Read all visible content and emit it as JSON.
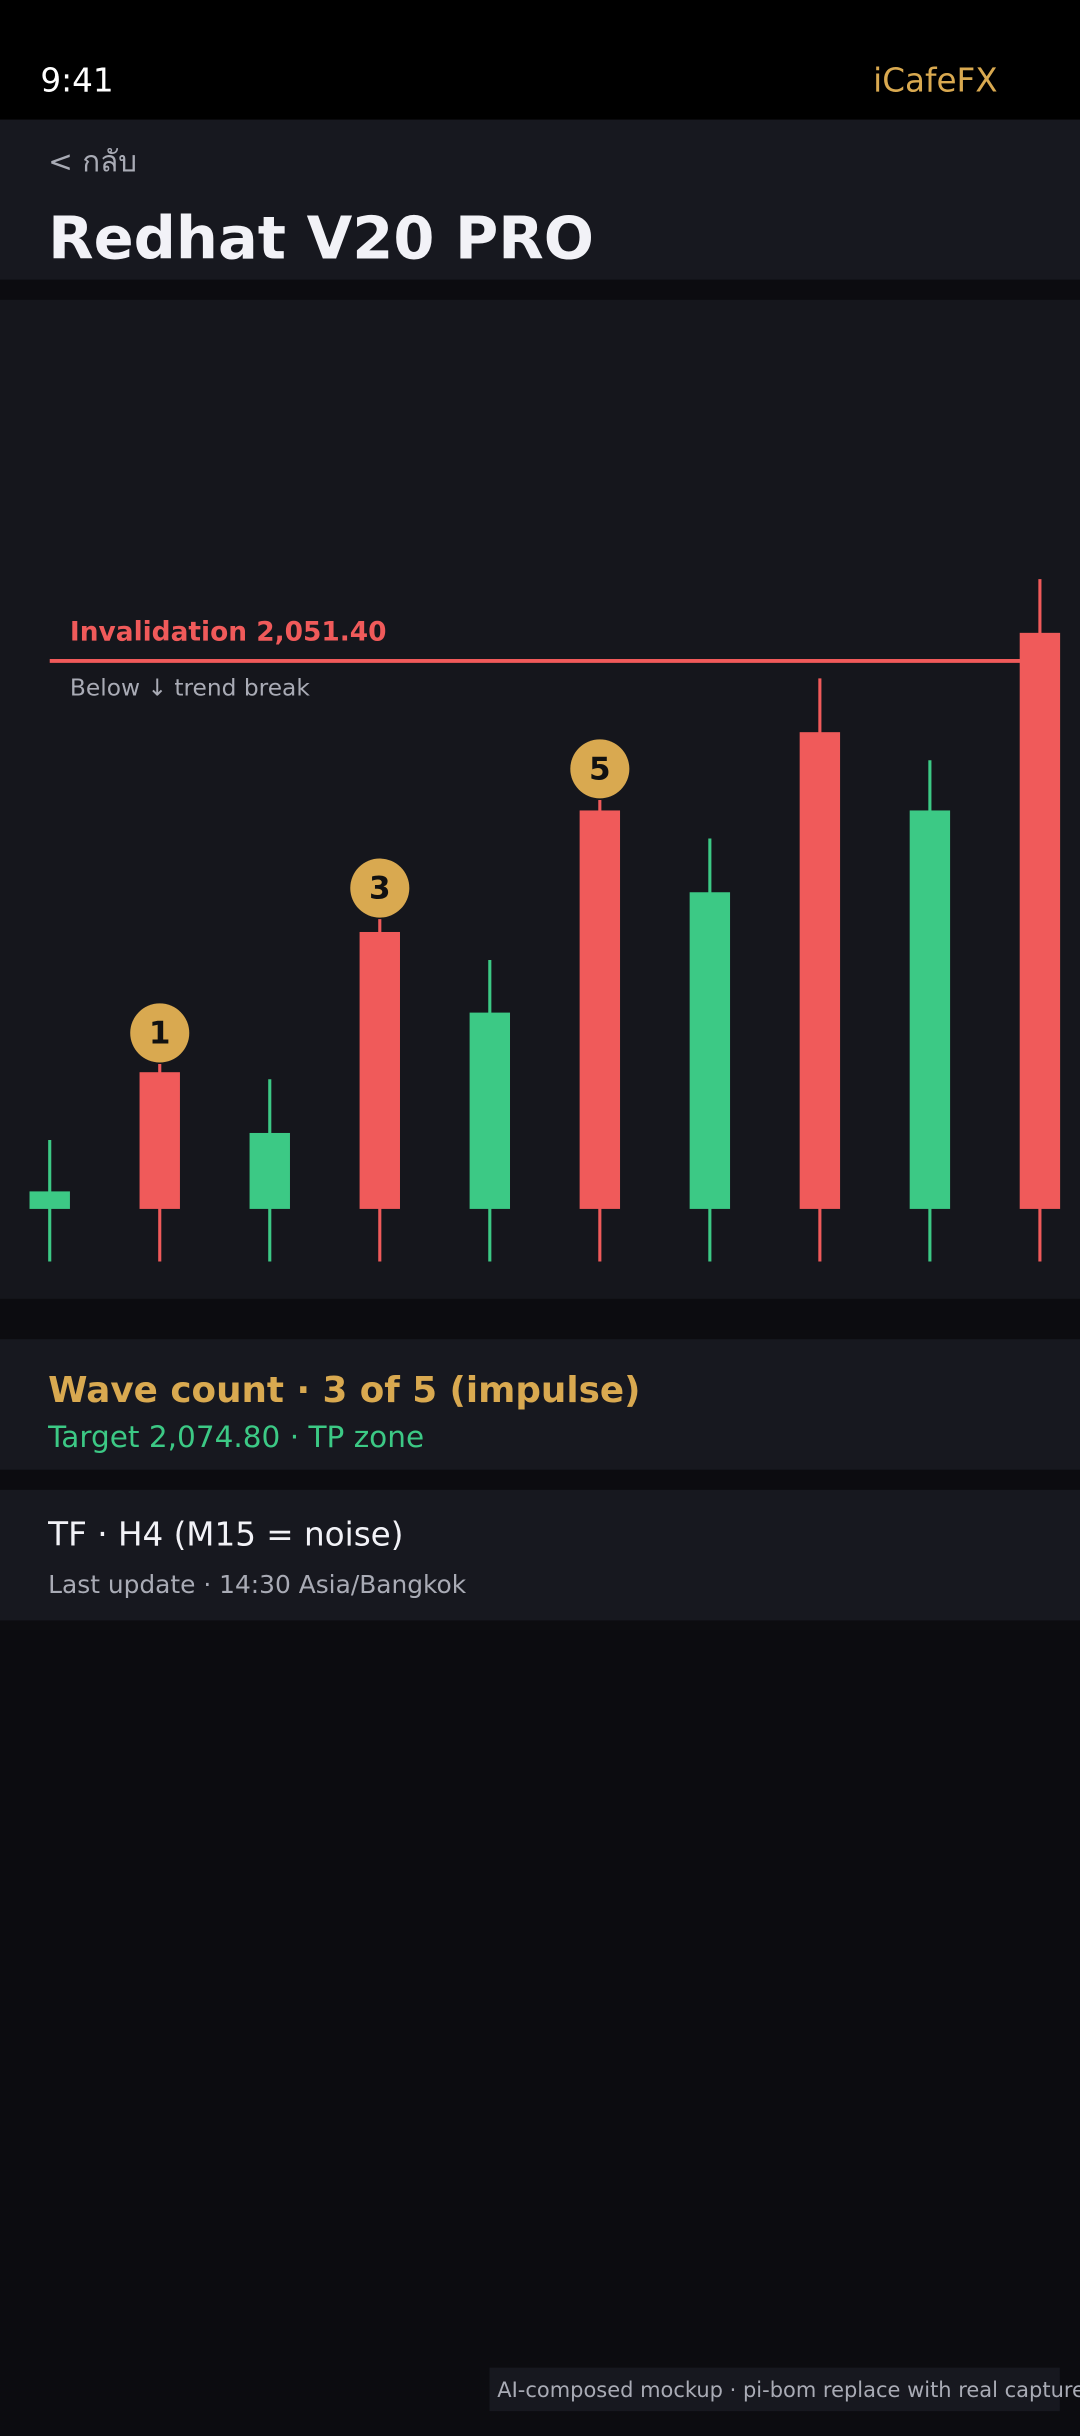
{
  "status_bar": {
    "time": "9:41",
    "brand": "iCafeFX"
  },
  "header": {
    "back": "< กลับ",
    "title": "Redhat V20 PRO"
  },
  "chart_data": {
    "type": "candlestick",
    "ylim": [
      2000,
      2058.5
    ],
    "up_color": "#3cc985",
    "down_color": "#f05a5a",
    "wave_color": "#d9a950",
    "candles": [
      {
        "open": 2004.5,
        "high": 2010.4,
        "low": 2000,
        "close": 2006.0
      },
      {
        "open": 2016.2,
        "high": 2016.9,
        "low": 2000,
        "close": 2004.5,
        "wave": "1"
      },
      {
        "open": 2004.5,
        "high": 2015.6,
        "low": 2000,
        "close": 2011.0
      },
      {
        "open": 2028.2,
        "high": 2029.3,
        "low": 2000,
        "close": 2004.5,
        "wave": "3"
      },
      {
        "open": 2004.5,
        "high": 2025.8,
        "low": 2000,
        "close": 2021.3
      },
      {
        "open": 2038.6,
        "high": 2039.5,
        "low": 2000,
        "close": 2004.5,
        "wave": "5"
      },
      {
        "open": 2004.5,
        "high": 2036.2,
        "low": 2000,
        "close": 2031.6
      },
      {
        "open": 2045.3,
        "high": 2049.9,
        "low": 2000,
        "close": 2004.5
      },
      {
        "open": 2004.5,
        "high": 2042.9,
        "low": 2000,
        "close": 2038.6
      },
      {
        "open": 2053.8,
        "high": 2058.4,
        "low": 2000,
        "close": 2004.5
      }
    ],
    "invalidation": {
      "value": 2051.4,
      "label": "Invalidation 2,051.40",
      "note": "Below ↓ trend break"
    }
  },
  "cards": [
    {
      "title": "Wave count · 3 of 5 (impulse)",
      "subtitle": "Target 2,074.80 · TP zone"
    },
    {
      "title": "TF · H4 (M15 = noise)",
      "subtitle": "Last update · 14:30 Asia/Bangkok"
    }
  ],
  "footer": "AI-composed mockup · pi-bom replace with real capture"
}
